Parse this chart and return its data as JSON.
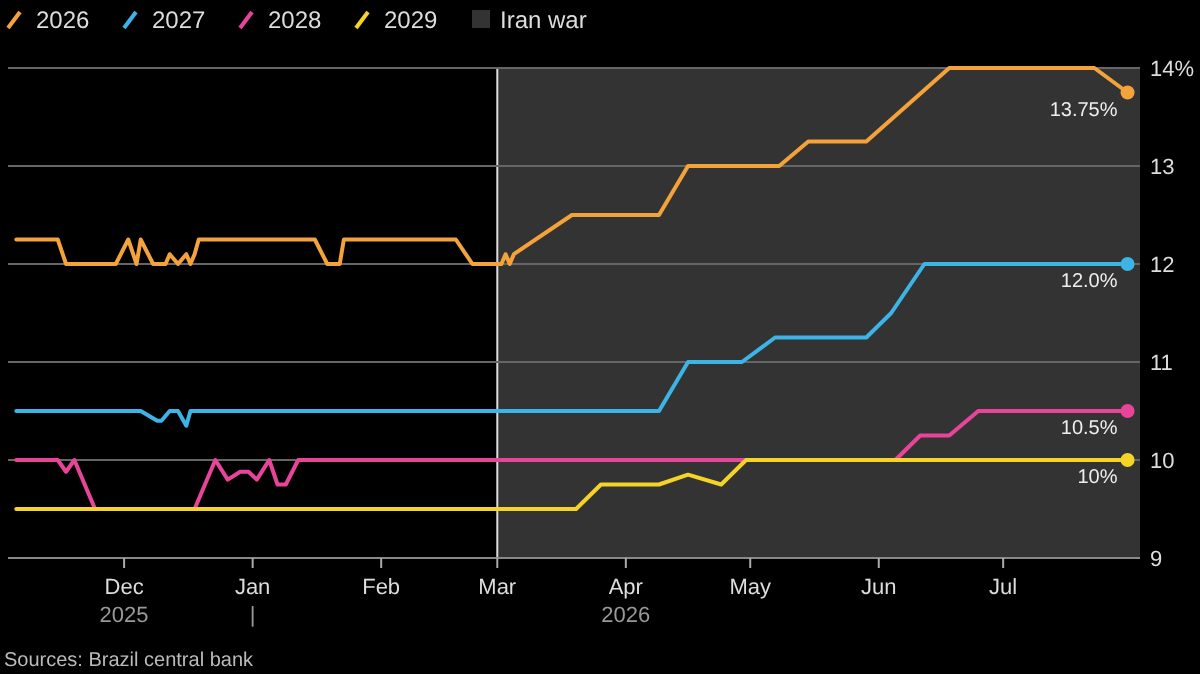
{
  "chart_data": {
    "type": "line",
    "legend": "top",
    "grid": "y",
    "marker": "none",
    "line_style": "solid",
    "xlim": [
      "2025-11-03",
      "2026-08-03"
    ],
    "xticks": [
      {
        "value": "2025-12-01",
        "label": "Dec\n2025"
      },
      {
        "value": "2026-01-01",
        "label": "Jan\n|"
      },
      {
        "value": "2026-02-01",
        "label": "Feb"
      },
      {
        "value": "2026-03-01",
        "label": "Mar"
      },
      {
        "value": "2026-04-01",
        "label": "Apr\n2026"
      },
      {
        "value": "2026-05-01",
        "label": "May"
      },
      {
        "value": "2026-06-01",
        "label": "Jun"
      },
      {
        "value": "2026-07-01",
        "label": "Jul"
      }
    ],
    "ylim": [
      9,
      14
    ],
    "yticks": [
      9,
      10,
      11,
      12,
      13,
      {
        "value": 14,
        "label": "14%"
      }
    ],
    "bands": [
      {
        "axis": "x",
        "from": "2026-03-01",
        "to": "2026-08-03",
        "label": "Iran war",
        "color": "#333333"
      }
    ],
    "ref_lines": [
      {
        "axis": "x",
        "value": "2026-03-01",
        "color": "#dddddd"
      }
    ],
    "series": [
      {
        "name": "2026",
        "color": "#f4a23a",
        "x": [
          "2025-11-05",
          "2025-11-15",
          "2025-11-17",
          "2025-11-29",
          "2025-12-02",
          "2025-12-04",
          "2025-12-05",
          "2025-12-08",
          "2025-12-11",
          "2025-12-12",
          "2025-12-14",
          "2025-12-16",
          "2025-12-17",
          "2025-12-18",
          "2025-12-19",
          "2026-01-16",
          "2026-01-19",
          "2026-01-22",
          "2026-01-23",
          "2026-02-19",
          "2026-02-23",
          "2026-03-02",
          "2026-03-03",
          "2026-03-04",
          "2026-03-05",
          "2026-03-19",
          "2026-04-09",
          "2026-04-16",
          "2026-05-08",
          "2026-05-15",
          "2026-05-29",
          "2026-06-18",
          "2026-07-23",
          "2026-07-31"
        ],
        "values": [
          12.25,
          12.25,
          12,
          12,
          12.25,
          12,
          12.25,
          12,
          12,
          12.1,
          12,
          12.1,
          12,
          12.1,
          12.25,
          12.25,
          12,
          12,
          12.25,
          12.25,
          12,
          12,
          12.1,
          12,
          12.1,
          12.5,
          12.5,
          13,
          13,
          13.25,
          13.25,
          14,
          14,
          13.75
        ]
      },
      {
        "name": "2027",
        "color": "#3cb4e6",
        "x": [
          "2025-11-05",
          "2025-12-05",
          "2025-12-09",
          "2025-12-10",
          "2025-12-12",
          "2025-12-14",
          "2025-12-16",
          "2025-12-17",
          "2026-04-09",
          "2026-04-16",
          "2026-04-29",
          "2026-05-07",
          "2026-05-29",
          "2026-06-04",
          "2026-06-12",
          "2026-07-31"
        ],
        "values": [
          10.5,
          10.5,
          10.4,
          10.4,
          10.5,
          10.5,
          10.35,
          10.5,
          10.5,
          11,
          11,
          11.25,
          11.25,
          11.5,
          12,
          12
        ]
      },
      {
        "name": "2028",
        "color": "#e8459a",
        "x": [
          "2025-11-05",
          "2025-11-15",
          "2025-11-17",
          "2025-11-19",
          "2025-11-24",
          "2025-12-18",
          "2025-12-23",
          "2025-12-26",
          "2025-12-29",
          "2025-12-31",
          "2026-01-02",
          "2026-01-05",
          "2026-01-07",
          "2026-01-09",
          "2026-01-12",
          "2026-06-05",
          "2026-06-11",
          "2026-06-18",
          "2026-06-25",
          "2026-07-31"
        ],
        "values": [
          10,
          10,
          9.88,
          10,
          9.5,
          9.5,
          10,
          9.8,
          9.88,
          9.88,
          9.8,
          10,
          9.75,
          9.75,
          10,
          10,
          10.25,
          10.25,
          10.5,
          10.5
        ]
      },
      {
        "name": "2029",
        "color": "#f5d327",
        "x": [
          "2025-11-05",
          "2026-03-20",
          "2026-03-26",
          "2026-04-09",
          "2026-04-16",
          "2026-04-24",
          "2026-04-30",
          "2026-07-31"
        ],
        "values": [
          9.5,
          9.5,
          9.75,
          9.75,
          9.85,
          9.75,
          10,
          10
        ]
      }
    ],
    "annotations": [
      {
        "text": "13.75%",
        "x": "2026-07-31",
        "y": 13.75
      },
      {
        "text": "12.0%",
        "x": "2026-07-31",
        "y": 12
      },
      {
        "text": "10.5%",
        "x": "2026-07-31",
        "y": 10.5
      },
      {
        "text": "10%",
        "x": "2026-07-31",
        "y": 10
      },
      "Sources: Brazil central bank"
    ]
  }
}
